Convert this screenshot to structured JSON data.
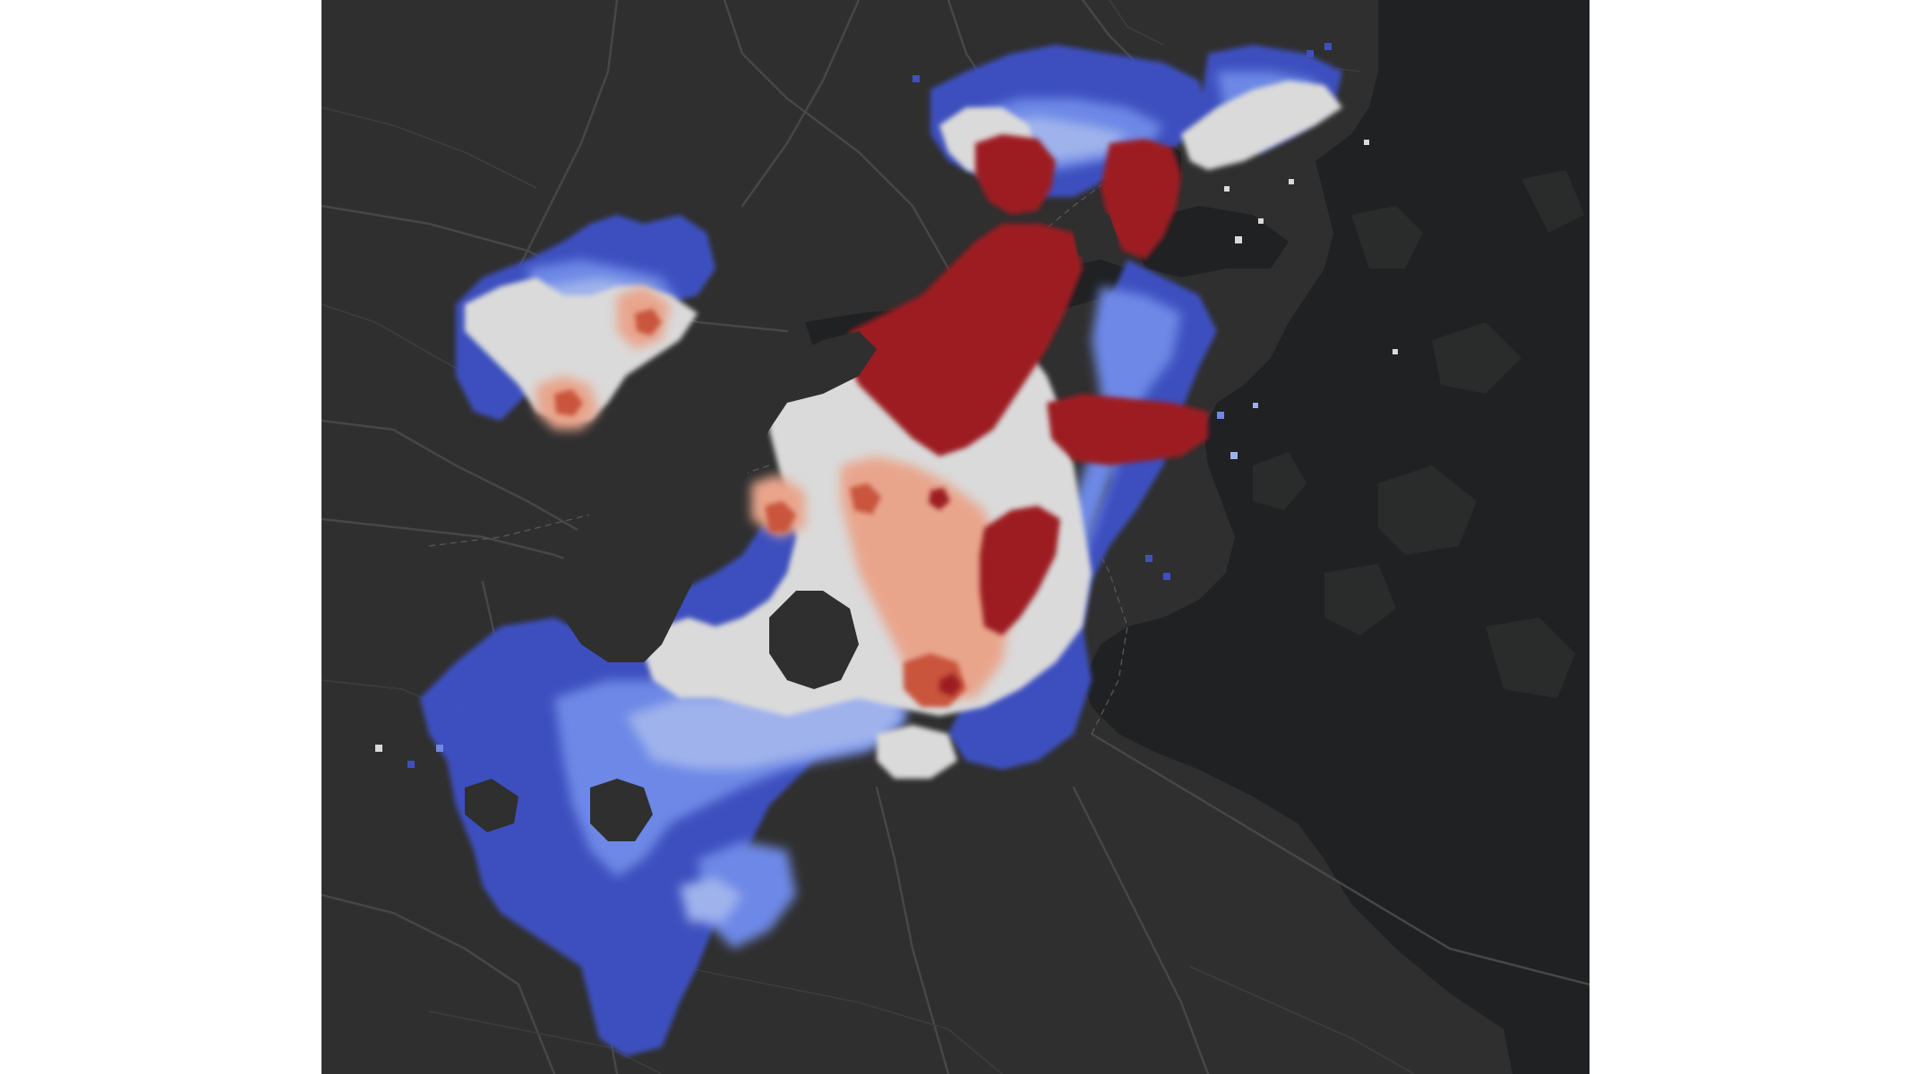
{
  "map": {
    "type": "heatmap-overlay",
    "basemap": "dark",
    "colors": {
      "land": "#2f2f2f",
      "water": "#1f2123",
      "road": "#474747",
      "very_high": "#9c1d22",
      "high": "#c9553c",
      "above": "#e9a58c",
      "neutral": "#dadada",
      "below": "#9fb2ec",
      "low": "#6d88e6",
      "very_low": "#3e50be"
    }
  }
}
